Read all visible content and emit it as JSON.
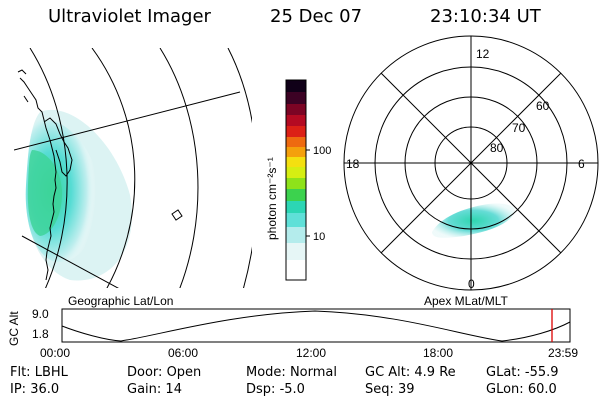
{
  "header": {
    "instrument": "Ultraviolet Imager",
    "date": "25 Dec 07",
    "time": "23:10:34 UT"
  },
  "chart_data": [
    {
      "type": "heatmap",
      "projection": "Geographic Lat/Lon",
      "colorbar": {
        "label": "photon cm⁻²s⁻¹",
        "scale": "log",
        "ticks": [
          "10",
          "100"
        ],
        "colors": [
          "#ffffff",
          "#e6f6f6",
          "#b4ecec",
          "#5fe0d8",
          "#2cd6b4",
          "#3cd24e",
          "#8ee21a",
          "#d6ee12",
          "#f4e010",
          "#f4a00c",
          "#ee6a10",
          "#dc2016",
          "#b40a22",
          "#7c0424",
          "#3c0224",
          "#100018"
        ]
      }
    },
    {
      "type": "heatmap",
      "projection": "Apex MLat/MLT",
      "mlt_labels": [
        "12",
        "18",
        "6",
        "0"
      ],
      "mlat_labels": [
        "60",
        "70",
        "80"
      ]
    },
    {
      "type": "line",
      "ylabel": "GC Alt",
      "y_ticks": [
        "9.0",
        "1.8"
      ],
      "x_ticks": [
        "00:00",
        "06:00",
        "12:00",
        "18:00",
        "23:59"
      ],
      "current_time": "23:10"
    }
  ],
  "status": {
    "row1": [
      {
        "label": "Flt:",
        "value": "LBHL"
      },
      {
        "label": "Door:",
        "value": "Open"
      },
      {
        "label": "Mode:",
        "value": "Normal"
      },
      {
        "label": "GC Alt:",
        "value": "4.9 Re"
      },
      {
        "label": "GLat:",
        "value": "-55.9"
      }
    ],
    "row2": [
      {
        "label": "IP:",
        "value": "36.0"
      },
      {
        "label": "Gain:",
        "value": "14"
      },
      {
        "label": "Dsp:",
        "value": "-5.0"
      },
      {
        "label": "Seq:",
        "value": "39"
      },
      {
        "label": "GLon:",
        "value": "60.0"
      }
    ]
  },
  "colors": {
    "aurora_green": "#34d494",
    "aurora_cyan": "#56dcd4",
    "marker": "#dd0000"
  }
}
